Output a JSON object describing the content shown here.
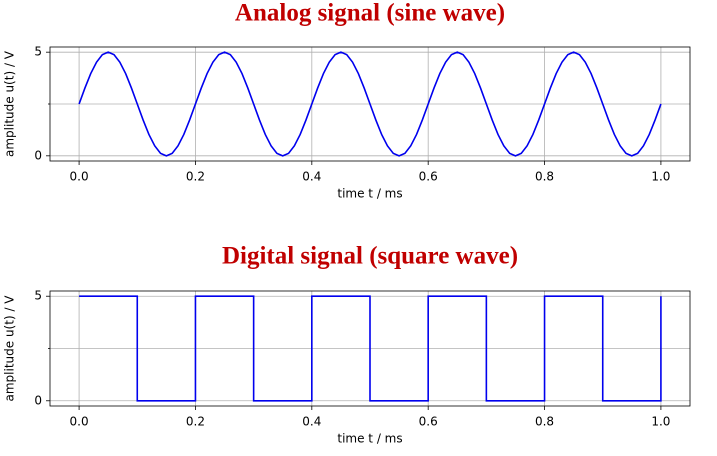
{
  "chart_data": [
    {
      "type": "line",
      "title": "Analog signal (sine wave)",
      "xlabel": "time t / ms",
      "ylabel": "amplitude u(t) / V",
      "color": "#0000ee",
      "grid": true,
      "xlim": [
        -0.05,
        1.05
      ],
      "ylim": [
        -0.25,
        5.25
      ],
      "xticks": [
        {
          "value": 0,
          "label": "0.0"
        },
        0.2,
        0.4,
        0.6,
        0.8,
        {
          "value": 1,
          "label": "1.0"
        }
      ],
      "yticks": [
        0,
        5
      ],
      "minor_yticks": [
        2.5
      ],
      "x": [
        0,
        0.01,
        0.02,
        0.03,
        0.04,
        0.05,
        0.06,
        0.07,
        0.08,
        0.09,
        0.1,
        0.11,
        0.12,
        0.13,
        0.14,
        0.15,
        0.16,
        0.17,
        0.18,
        0.19,
        0.2,
        0.21,
        0.22,
        0.23,
        0.24,
        0.25,
        0.26,
        0.27,
        0.28,
        0.29,
        0.3,
        0.31,
        0.32,
        0.33,
        0.34,
        0.35,
        0.36,
        0.37,
        0.38,
        0.39,
        0.4,
        0.41,
        0.42,
        0.43,
        0.44,
        0.45,
        0.46,
        0.47,
        0.48,
        0.49,
        0.5,
        0.51,
        0.52,
        0.53,
        0.54,
        0.55,
        0.56,
        0.57,
        0.58,
        0.59,
        0.6,
        0.61,
        0.62,
        0.63,
        0.64,
        0.65,
        0.66,
        0.67,
        0.68,
        0.69,
        0.7,
        0.71,
        0.72,
        0.73,
        0.74,
        0.75,
        0.76,
        0.77,
        0.78,
        0.79,
        0.8,
        0.81,
        0.82,
        0.83,
        0.84,
        0.85,
        0.86,
        0.87,
        0.88,
        0.89,
        0.9,
        0.91,
        0.92,
        0.93,
        0.94,
        0.95,
        0.96,
        0.97,
        0.98,
        0.99,
        1
      ],
      "values": [
        2.5,
        3.27,
        3.97,
        4.52,
        4.88,
        5,
        4.88,
        4.52,
        3.97,
        3.27,
        2.5,
        1.73,
        1.03,
        0.48,
        0.12,
        0,
        0.12,
        0.48,
        1.03,
        1.73,
        2.5,
        3.27,
        3.97,
        4.52,
        4.88,
        5,
        4.88,
        4.52,
        3.97,
        3.27,
        2.5,
        1.73,
        1.03,
        0.48,
        0.12,
        0,
        0.12,
        0.48,
        1.03,
        1.73,
        2.5,
        3.27,
        3.97,
        4.52,
        4.88,
        5,
        4.88,
        4.52,
        3.97,
        3.27,
        2.5,
        1.73,
        1.03,
        0.48,
        0.12,
        0,
        0.12,
        0.48,
        1.03,
        1.73,
        2.5,
        3.27,
        3.97,
        4.52,
        4.88,
        5,
        4.88,
        4.52,
        3.97,
        3.27,
        2.5,
        1.73,
        1.03,
        0.48,
        0.12,
        0,
        0.12,
        0.48,
        1.03,
        1.73,
        2.5,
        3.27,
        3.97,
        4.52,
        4.88,
        5,
        4.88,
        4.52,
        3.97,
        3.27,
        2.5,
        1.73,
        1.03,
        0.48,
        0.12,
        0,
        0.12,
        0.48,
        1.03,
        1.73,
        2.5
      ]
    },
    {
      "type": "line",
      "title": "Digital signal (square wave)",
      "xlabel": "time t / ms",
      "ylabel": "amplitude u(t) / V",
      "color": "#0000ee",
      "grid": true,
      "xlim": [
        -0.05,
        1.05
      ],
      "ylim": [
        -0.25,
        5.25
      ],
      "xticks": [
        {
          "value": 0,
          "label": "0.0"
        },
        0.2,
        0.4,
        0.6,
        0.8,
        {
          "value": 1,
          "label": "1.0"
        }
      ],
      "yticks": [
        0,
        5
      ],
      "minor_yticks": [
        2.5
      ],
      "x": [
        0,
        0.1,
        0.1,
        0.2,
        0.2,
        0.3,
        0.3,
        0.4,
        0.4,
        0.5,
        0.5,
        0.6,
        0.6,
        0.7,
        0.7,
        0.8,
        0.8,
        0.9,
        0.9,
        1,
        1
      ],
      "values": [
        5,
        5,
        0,
        0,
        5,
        5,
        0,
        0,
        5,
        5,
        0,
        0,
        5,
        5,
        0,
        0,
        5,
        5,
        0,
        0,
        5
      ]
    }
  ]
}
